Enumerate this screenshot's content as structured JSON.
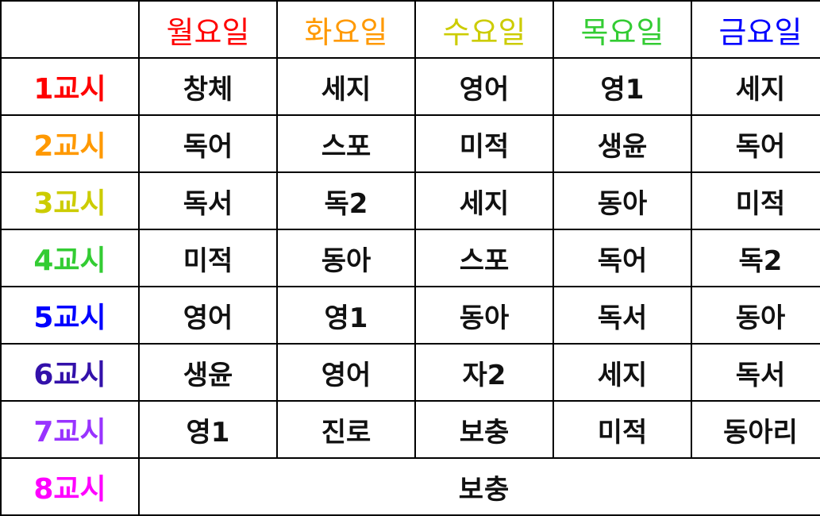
{
  "days": [
    {
      "label": "월요일",
      "color": "#ff0000"
    },
    {
      "label": "화요일",
      "color": "#ff9900"
    },
    {
      "label": "수요일",
      "color": "#cccc00"
    },
    {
      "label": "목요일",
      "color": "#33cc33"
    },
    {
      "label": "금요일",
      "color": "#0000ff"
    }
  ],
  "periods": [
    {
      "label": "1교시",
      "color": "#ff0000",
      "subjects": [
        "창체",
        "세지",
        "영어",
        "영1",
        "세지"
      ]
    },
    {
      "label": "2교시",
      "color": "#ff9900",
      "subjects": [
        "독어",
        "스포",
        "미적",
        "생윤",
        "독어"
      ]
    },
    {
      "label": "3교시",
      "color": "#cccc00",
      "subjects": [
        "독서",
        "독2",
        "세지",
        "동아",
        "미적"
      ]
    },
    {
      "label": "4교시",
      "color": "#33cc33",
      "subjects": [
        "미적",
        "동아",
        "스포",
        "독어",
        "독2"
      ]
    },
    {
      "label": "5교시",
      "color": "#0000ff",
      "subjects": [
        "영어",
        "영1",
        "동아",
        "독서",
        "동아"
      ]
    },
    {
      "label": "6교시",
      "color": "#3311aa",
      "subjects": [
        "생윤",
        "영어",
        "자2",
        "세지",
        "독서"
      ]
    },
    {
      "label": "7교시",
      "color": "#9933ff",
      "subjects": [
        "영1",
        "진로",
        "보충",
        "미적",
        "동아리"
      ]
    },
    {
      "label": "8교시",
      "color": "#ff00ff",
      "merged": "보충"
    }
  ]
}
